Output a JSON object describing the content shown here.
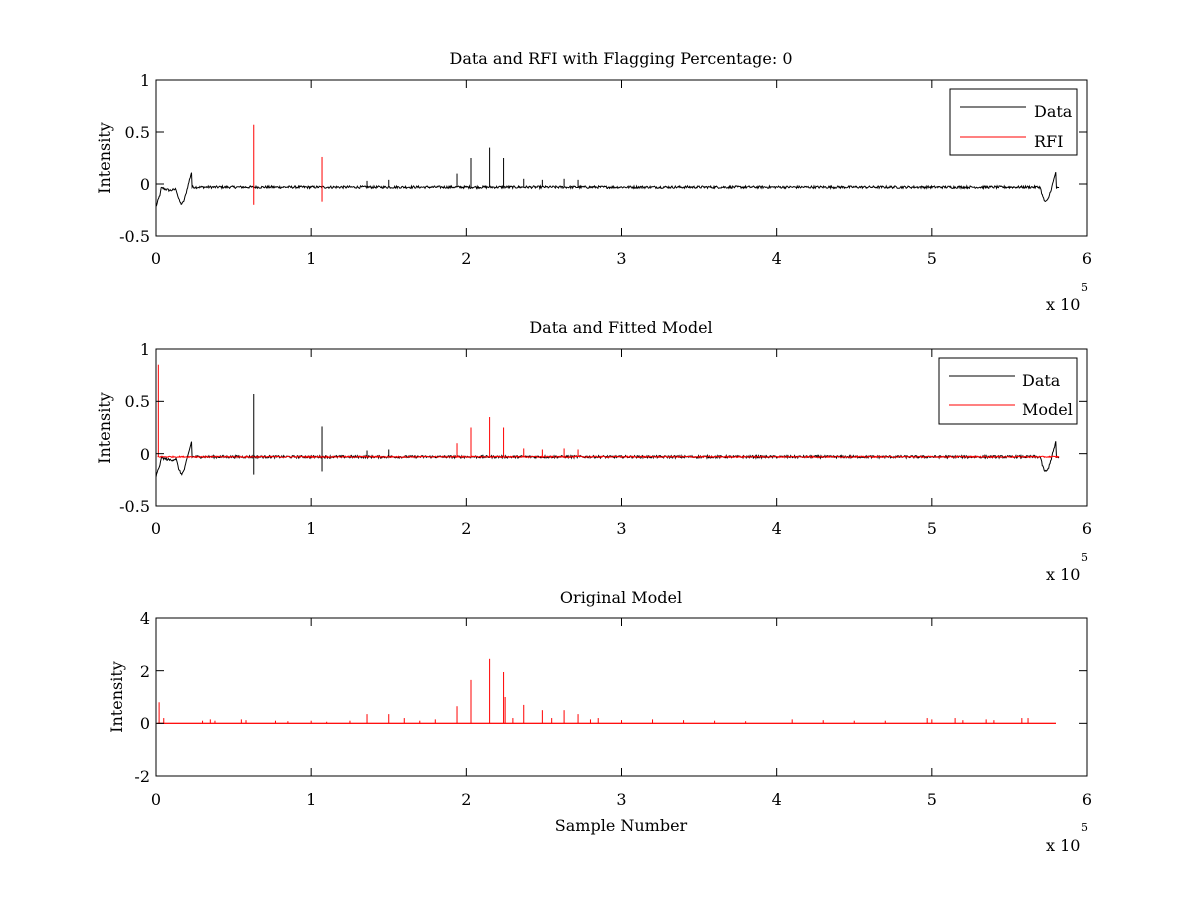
{
  "figure": {
    "background": "#ffffff",
    "colors": {
      "data": "#000000",
      "rfi": "#ff0000",
      "model": "#ff0000"
    }
  },
  "chart_data": [
    {
      "type": "line",
      "title": "Data and RFI with Flagging Percentage: 0",
      "xlabel": "",
      "ylabel": "Intensity",
      "xlim": [
        0,
        6
      ],
      "ylim": [
        -0.5,
        1
      ],
      "xticks": [
        "0",
        "1",
        "2",
        "3",
        "4",
        "5",
        "6"
      ],
      "yticks": [
        "1",
        "0.5",
        "0",
        "-0.5"
      ],
      "x_multiplier_text": "x 10",
      "x_multiplier_exp": "5",
      "legend": {
        "placement": "top-right",
        "entries": [
          "Data",
          "RFI"
        ]
      },
      "series": [
        {
          "name": "Data",
          "color": "#000000",
          "baseline": -0.03,
          "noise": 0.012,
          "edge_features": true,
          "spikes": [
            [
              1.36,
              0.03
            ],
            [
              1.5,
              0.04
            ],
            [
              1.94,
              0.1
            ],
            [
              2.03,
              0.25
            ],
            [
              2.15,
              0.35
            ],
            [
              2.24,
              0.25
            ],
            [
              2.37,
              0.05
            ],
            [
              2.49,
              0.04
            ],
            [
              2.63,
              0.05
            ],
            [
              2.72,
              0.04
            ]
          ]
        },
        {
          "name": "RFI",
          "color": "#ff0000",
          "spikes": [
            [
              0.63,
              0.57,
              -0.2
            ],
            [
              1.07,
              0.26,
              -0.17
            ]
          ]
        }
      ]
    },
    {
      "type": "line",
      "title": "Data and Fitted Model",
      "xlabel": "",
      "ylabel": "Intensity",
      "xlim": [
        0,
        6
      ],
      "ylim": [
        -0.5,
        1
      ],
      "xticks": [
        "0",
        "1",
        "2",
        "3",
        "4",
        "5",
        "6"
      ],
      "yticks": [
        "1",
        "0.5",
        "0",
        "-0.5"
      ],
      "x_multiplier_text": "x 10",
      "x_multiplier_exp": "5",
      "legend": {
        "placement": "top-right",
        "entries": [
          "Data",
          "Model"
        ]
      },
      "series": [
        {
          "name": "Data",
          "color": "#000000",
          "baseline": -0.03,
          "noise": 0.012,
          "edge_features": true,
          "spikes": [
            [
              0.63,
              0.57,
              -0.2
            ],
            [
              1.07,
              0.26,
              -0.17
            ],
            [
              1.36,
              0.03
            ],
            [
              1.5,
              0.04
            ]
          ]
        },
        {
          "name": "Model",
          "color": "#ff0000",
          "baseline": -0.03,
          "noise": 0.006,
          "spikes": [
            [
              0.015,
              0.85
            ],
            [
              1.94,
              0.1
            ],
            [
              2.03,
              0.25
            ],
            [
              2.15,
              0.35
            ],
            [
              2.24,
              0.25
            ],
            [
              2.37,
              0.05
            ],
            [
              2.49,
              0.04
            ],
            [
              2.63,
              0.05
            ],
            [
              2.72,
              0.04
            ]
          ]
        }
      ]
    },
    {
      "type": "line",
      "title": "Original Model",
      "xlabel": "Sample Number",
      "ylabel": "Intensity",
      "xlim": [
        0,
        6
      ],
      "ylim": [
        -2,
        4
      ],
      "xticks": [
        "0",
        "1",
        "2",
        "3",
        "4",
        "5",
        "6"
      ],
      "yticks": [
        "4",
        "2",
        "0",
        "-2"
      ],
      "x_multiplier_text": "x 10",
      "x_multiplier_exp": "5",
      "legend": null,
      "series": [
        {
          "name": "Original Model",
          "color": "#ff0000",
          "baseline": 0,
          "x_end": 5.8,
          "spikes": [
            [
              0.02,
              0.8
            ],
            [
              0.05,
              0.2
            ],
            [
              0.3,
              0.1
            ],
            [
              0.35,
              0.15
            ],
            [
              0.38,
              0.1
            ],
            [
              0.55,
              0.15
            ],
            [
              0.58,
              0.12
            ],
            [
              0.77,
              0.1
            ],
            [
              0.85,
              0.08
            ],
            [
              1.0,
              0.1
            ],
            [
              1.1,
              0.06
            ],
            [
              1.25,
              0.1
            ],
            [
              1.36,
              0.35
            ],
            [
              1.5,
              0.35
            ],
            [
              1.6,
              0.2
            ],
            [
              1.7,
              0.1
            ],
            [
              1.8,
              0.15
            ],
            [
              1.94,
              0.65
            ],
            [
              2.03,
              1.65
            ],
            [
              2.15,
              2.45
            ],
            [
              2.24,
              1.95
            ],
            [
              2.25,
              1.0
            ],
            [
              2.3,
              0.2
            ],
            [
              2.37,
              0.7
            ],
            [
              2.49,
              0.5
            ],
            [
              2.55,
              0.2
            ],
            [
              2.63,
              0.5
            ],
            [
              2.72,
              0.35
            ],
            [
              2.8,
              0.15
            ],
            [
              2.85,
              0.2
            ],
            [
              3.0,
              0.12
            ],
            [
              3.2,
              0.15
            ],
            [
              3.4,
              0.12
            ],
            [
              3.6,
              0.1
            ],
            [
              3.8,
              0.08
            ],
            [
              4.1,
              0.15
            ],
            [
              4.3,
              0.12
            ],
            [
              4.5,
              0.1
            ],
            [
              4.7,
              0.1
            ],
            [
              4.97,
              0.2
            ],
            [
              5.0,
              0.15
            ],
            [
              5.15,
              0.2
            ],
            [
              5.2,
              0.12
            ],
            [
              5.35,
              0.15
            ],
            [
              5.4,
              0.12
            ],
            [
              5.58,
              0.2
            ],
            [
              5.62,
              0.2
            ]
          ]
        }
      ]
    }
  ]
}
